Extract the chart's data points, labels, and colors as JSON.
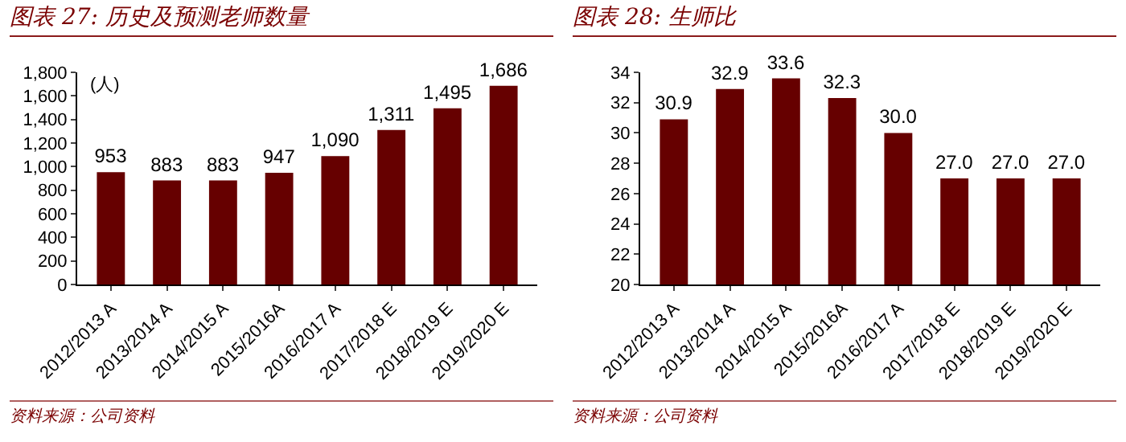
{
  "chart_data": [
    {
      "type": "bar",
      "title": "图表 27: 历史及预测老师数量",
      "ylabel": "(人)",
      "categories": [
        "2012/2013 A",
        "2013/2014 A",
        "2014/2015 A",
        "2015/2016A",
        "2016/2017 A",
        "2017/2018 E",
        "2018/2019 E",
        "2019/2020 E"
      ],
      "values": [
        953,
        883,
        883,
        947,
        1090,
        1311,
        1495,
        1686
      ],
      "color": "#660000",
      "data_labels": true,
      "value_labels": [
        "953",
        "883",
        "883",
        "947",
        "1,090",
        "1,311",
        "1,495",
        "1,686"
      ],
      "ylim": [
        0,
        1800
      ],
      "yticks": [
        0,
        200,
        400,
        600,
        800,
        {
          "value": 1000,
          "label": "1,000"
        },
        {
          "value": 1200,
          "label": "1,200"
        },
        {
          "value": 1400,
          "label": "1,400"
        },
        {
          "value": 1600,
          "label": "1,600"
        },
        {
          "value": 1800,
          "label": "1,800"
        }
      ],
      "annotations": [
        "资料来源：公司资料"
      ]
    },
    {
      "type": "bar",
      "title": "图表 28: 生师比",
      "categories": [
        "2012/2013 A",
        "2013/2014 A",
        "2014/2015 A",
        "2015/2016A",
        "2016/2017 A",
        "2017/2018 E",
        "2018/2019 E",
        "2019/2020 E"
      ],
      "values": [
        30.9,
        32.9,
        33.6,
        32.3,
        30.0,
        27.0,
        27.0,
        27.0
      ],
      "color": "#660000",
      "data_labels": true,
      "value_labels": [
        "30.9",
        "32.9",
        "33.6",
        "32.3",
        "30.0",
        "27.0",
        "27.0",
        "27.0"
      ],
      "ylim": [
        20,
        34
      ],
      "yticks": [
        20,
        22,
        24,
        26,
        28,
        30,
        32,
        34
      ],
      "annotations": [
        "资料来源：公司资料"
      ]
    }
  ]
}
